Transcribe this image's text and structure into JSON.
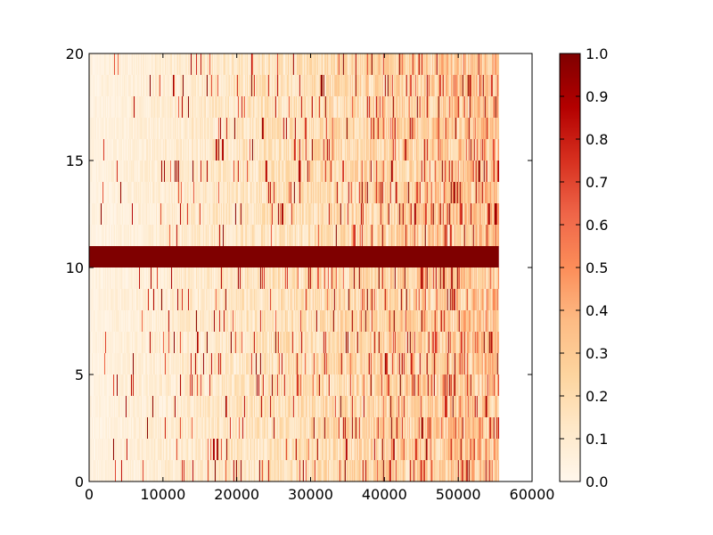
{
  "chart_data": {
    "type": "heatmap",
    "title": "",
    "xlabel": "",
    "ylabel": "",
    "xlim": [
      0,
      60000
    ],
    "ylim": [
      0,
      20
    ],
    "x_ticks": [
      0,
      10000,
      20000,
      30000,
      40000,
      50000,
      60000
    ],
    "x_tick_labels": [
      "0",
      "10000",
      "20000",
      "30000",
      "40000",
      "50000",
      "60000"
    ],
    "y_ticks": [
      0,
      5,
      10,
      15,
      20
    ],
    "y_tick_labels": [
      "0",
      "5",
      "10",
      "15",
      "20"
    ],
    "data_extent": {
      "x": [
        0,
        55500
      ],
      "y": [
        0,
        20
      ]
    },
    "n_rows": 20,
    "highlight_row": {
      "y_range": [
        10,
        11
      ],
      "value": 1.0
    },
    "value_range": [
      0.0,
      1.0
    ],
    "colormap": "OrRd",
    "colormap_stops": [
      "#fff7ec",
      "#fee8c8",
      "#fdd49e",
      "#fdbb84",
      "#fc8d59",
      "#ef6548",
      "#d7301f",
      "#b30000",
      "#7f0000"
    ],
    "colorbar": {
      "ticks": [
        0.0,
        0.1,
        0.2,
        0.3,
        0.4,
        0.5,
        0.6,
        0.7,
        0.8,
        0.9,
        1.0
      ],
      "tick_labels": [
        "0.0",
        "0.1",
        "0.2",
        "0.3",
        "0.4",
        "0.5",
        "0.6",
        "0.7",
        "0.8",
        "0.9",
        "1.0"
      ]
    },
    "grid": false
  }
}
